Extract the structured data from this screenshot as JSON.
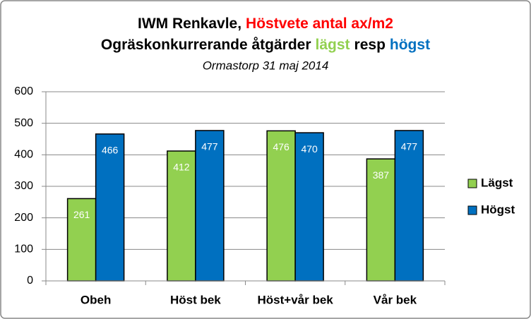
{
  "chart_data": {
    "type": "bar",
    "title_lines": [
      [
        {
          "text": "IWM Renkavle,",
          "color": "#000000"
        },
        {
          "text": "Höstvete antal ax/m2",
          "color": "#ff0000"
        }
      ],
      [
        {
          "text": "Ogräskonkurrerande åtgärder",
          "color": "#000000"
        },
        {
          "text": "lägst",
          "color": "#92d050"
        },
        {
          "text": "resp",
          "color": "#000000"
        },
        {
          "text": "högst",
          "color": "#0070c0"
        }
      ]
    ],
    "subtitle": "Ormastorp 31 maj 2014",
    "categories": [
      "Obeh",
      "Höst bek",
      "Höst+vår bek",
      "Vår bek"
    ],
    "series": [
      {
        "name": "Lägst",
        "color": "#92d050",
        "values": [
          261,
          412,
          476,
          387
        ]
      },
      {
        "name": "Högst",
        "color": "#0070c0",
        "values": [
          466,
          477,
          470,
          477
        ]
      }
    ],
    "ylim": [
      0,
      600
    ],
    "yticks": [
      0,
      100,
      200,
      300,
      400,
      500,
      600
    ],
    "grid": true,
    "legend": "right"
  }
}
